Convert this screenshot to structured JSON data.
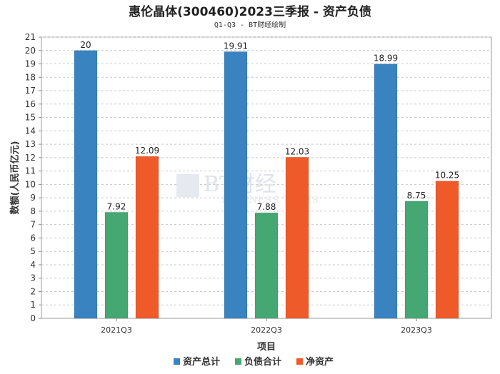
{
  "title": "惠伦晶体(300460)2023三季报 - 资产负债",
  "subtitle": "Q1-Q3 - BT财经绘制",
  "watermark": {
    "brand": "BT财经",
    "sub": "BUSINESS TIMES"
  },
  "colors": {
    "assets": "#3a83c1",
    "liabilities": "#45a873",
    "equity": "#ef5a2a",
    "grid": "#c8c8c8",
    "axis": "#888888"
  },
  "chart_data": {
    "type": "bar",
    "title": "惠伦晶体(300460)2023三季报 - 资产负债",
    "subtitle": "Q1-Q3 - BT财经绘制",
    "xlabel": "项目",
    "ylabel": "数额(人民币亿元)",
    "categories": [
      "2021Q3",
      "2022Q3",
      "2023Q3"
    ],
    "ylim": [
      0,
      21
    ],
    "yticks": [
      0,
      1,
      2,
      3,
      4,
      5,
      6,
      7,
      8,
      9,
      10,
      11,
      12,
      13,
      14,
      15,
      16,
      17,
      18,
      19,
      20,
      21
    ],
    "grid": true,
    "legend_position": "bottom",
    "series": [
      {
        "name": "资产总计",
        "values": [
          20,
          19.91,
          18.99
        ],
        "labels": [
          "20",
          "19.91",
          "18.99"
        ],
        "color": "#3a83c1"
      },
      {
        "name": "负债合计",
        "values": [
          7.92,
          7.88,
          8.75
        ],
        "labels": [
          "7.92",
          "7.88",
          "8.75"
        ],
        "color": "#45a873"
      },
      {
        "name": "净资产",
        "values": [
          12.09,
          12.03,
          10.25
        ],
        "labels": [
          "12.09",
          "12.03",
          "10.25"
        ],
        "color": "#ef5a2a"
      }
    ]
  }
}
